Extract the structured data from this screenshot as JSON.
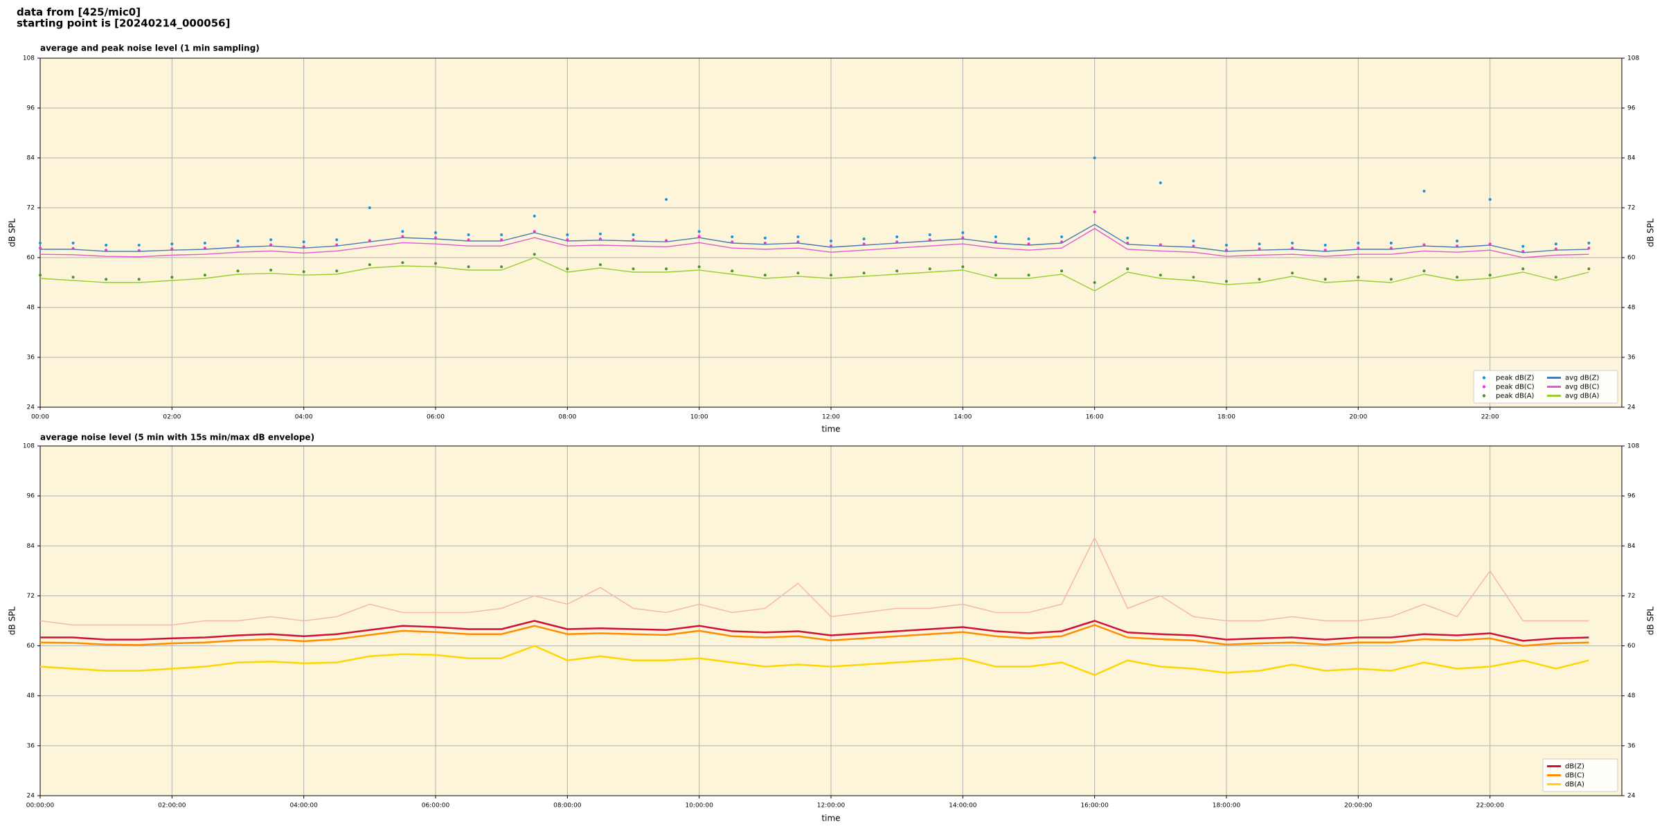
{
  "header": {
    "line1": "data from [425/mic0]",
    "line2": "starting point is [20240214_000056]"
  },
  "chart_data": [
    {
      "type": "line",
      "title": "average and peak noise level (1 min sampling)",
      "x_label": "time",
      "y_label": "dB SPL",
      "background": "#fdf5d9",
      "grid": true,
      "legend": "lower right",
      "xlim": [
        0,
        24
      ],
      "ylim": [
        24,
        108
      ],
      "xticks": [
        {
          "value": 0,
          "label": "00:00"
        },
        {
          "value": 2,
          "label": "02:00"
        },
        {
          "value": 4,
          "label": "04:00"
        },
        {
          "value": 6,
          "label": "06:00"
        },
        {
          "value": 8,
          "label": "08:00"
        },
        {
          "value": 10,
          "label": "10:00"
        },
        {
          "value": 12,
          "label": "12:00"
        },
        {
          "value": 14,
          "label": "14:00"
        },
        {
          "value": 16,
          "label": "16:00"
        },
        {
          "value": 18,
          "label": "18:00"
        },
        {
          "value": 20,
          "label": "20:00"
        },
        {
          "value": 22,
          "label": "22:00"
        }
      ],
      "yticks": [
        24,
        36,
        48,
        60,
        72,
        84,
        96,
        108
      ],
      "x": [
        0,
        0.5,
        1,
        1.5,
        2,
        2.5,
        3,
        3.5,
        4,
        4.5,
        5,
        5.5,
        6,
        6.5,
        7,
        7.5,
        8,
        8.5,
        9,
        9.5,
        10,
        10.5,
        11,
        11.5,
        12,
        12.5,
        13,
        13.5,
        14,
        14.5,
        15,
        15.5,
        16,
        16.5,
        17,
        17.5,
        18,
        18.5,
        19,
        19.5,
        20,
        20.5,
        21,
        21.5,
        22,
        22.5,
        23,
        23.5
      ],
      "series": [
        {
          "name": "peak dB(Z)",
          "kind": "scatter",
          "color": "#1f8fd6",
          "values": [
            63.5,
            63.5,
            63.0,
            63.0,
            63.3,
            63.5,
            64.0,
            64.3,
            63.8,
            64.3,
            72.0,
            66.3,
            66.0,
            65.5,
            65.5,
            70.0,
            65.5,
            65.7,
            65.5,
            74.0,
            66.3,
            65.0,
            64.7,
            65.0,
            64.0,
            64.5,
            65.0,
            65.5,
            66.0,
            65.0,
            64.5,
            65.0,
            84.0,
            64.7,
            78.0,
            64.0,
            63.0,
            63.3,
            63.5,
            63.0,
            63.5,
            63.5,
            76.0,
            64.0,
            74.0,
            62.7,
            63.3,
            63.5
          ]
        },
        {
          "name": "peak dB(C)",
          "kind": "scatter",
          "color": "#ff2fd0",
          "values": [
            62.3,
            62.2,
            61.8,
            61.7,
            62.1,
            62.3,
            62.8,
            63.1,
            62.6,
            63.1,
            64.1,
            65.1,
            64.8,
            64.3,
            64.3,
            66.3,
            64.3,
            64.5,
            64.3,
            64.1,
            65.1,
            63.8,
            63.5,
            63.8,
            62.8,
            63.3,
            63.8,
            64.3,
            64.8,
            63.8,
            63.3,
            63.8,
            71.0,
            63.5,
            63.1,
            62.8,
            61.8,
            62.1,
            62.3,
            61.8,
            62.3,
            62.3,
            63.1,
            62.8,
            63.3,
            61.5,
            62.1,
            62.3
          ]
        },
        {
          "name": "peak dB(A)",
          "kind": "scatter",
          "color": "#4f8f2f",
          "values": [
            55.8,
            55.3,
            54.8,
            54.8,
            55.3,
            55.8,
            56.8,
            57.0,
            56.6,
            56.8,
            58.3,
            58.8,
            58.6,
            57.8,
            57.8,
            60.8,
            57.3,
            58.3,
            57.3,
            57.3,
            57.8,
            56.8,
            55.8,
            56.3,
            55.8,
            56.3,
            56.8,
            57.3,
            57.8,
            55.8,
            55.8,
            56.8,
            54.0,
            57.3,
            55.8,
            55.3,
            54.3,
            54.8,
            56.3,
            54.8,
            55.3,
            54.8,
            56.8,
            55.3,
            55.8,
            57.3,
            55.3,
            57.3
          ]
        },
        {
          "name": "avg dB(Z)",
          "kind": "line",
          "color": "#4a78b0",
          "values": [
            62.0,
            62.0,
            61.5,
            61.5,
            61.8,
            62.0,
            62.5,
            62.8,
            62.3,
            62.8,
            63.8,
            64.8,
            64.5,
            64.0,
            64.0,
            66.0,
            64.0,
            64.2,
            64.0,
            63.8,
            64.8,
            63.5,
            63.2,
            63.5,
            62.5,
            63.0,
            63.5,
            64.0,
            64.5,
            63.5,
            63.0,
            63.5,
            68.0,
            63.2,
            62.8,
            62.5,
            61.5,
            61.8,
            62.0,
            61.5,
            62.0,
            62.0,
            62.8,
            62.5,
            63.0,
            61.2,
            61.8,
            62.0
          ]
        },
        {
          "name": "avg dB(C)",
          "kind": "line",
          "color": "#e05ad0",
          "values": [
            60.8,
            60.7,
            60.3,
            60.2,
            60.6,
            60.8,
            61.3,
            61.6,
            61.1,
            61.6,
            62.6,
            63.6,
            63.3,
            62.8,
            62.8,
            64.8,
            62.8,
            63.0,
            62.8,
            62.6,
            63.6,
            62.3,
            62.0,
            62.3,
            61.3,
            61.8,
            62.3,
            62.8,
            63.3,
            62.3,
            61.8,
            62.3,
            67.0,
            62.0,
            61.6,
            61.3,
            60.3,
            60.6,
            60.8,
            60.3,
            60.8,
            60.8,
            61.6,
            61.3,
            61.8,
            60.0,
            60.6,
            60.8
          ]
        },
        {
          "name": "avg dB(A)",
          "kind": "line",
          "color": "#9acd32",
          "values": [
            55.0,
            54.5,
            54.0,
            54.0,
            54.5,
            55.0,
            56.0,
            56.2,
            55.8,
            56.0,
            57.5,
            58.0,
            57.8,
            57.0,
            57.0,
            60.0,
            56.5,
            57.5,
            56.5,
            56.5,
            57.0,
            56.0,
            55.0,
            55.5,
            55.0,
            55.5,
            56.0,
            56.5,
            57.0,
            55.0,
            55.0,
            56.0,
            52.0,
            56.5,
            55.0,
            54.5,
            53.5,
            54.0,
            55.5,
            54.0,
            54.5,
            54.0,
            56.0,
            54.5,
            55.0,
            56.5,
            54.5,
            56.5
          ]
        }
      ]
    },
    {
      "type": "line",
      "title": "average noise level (5 min with 15s min/max dB envelope)",
      "x_label": "time",
      "y_label": "dB SPL",
      "background": "#fdf5d9",
      "grid": true,
      "legend": "lower right",
      "xlim": [
        0,
        24
      ],
      "ylim": [
        24,
        108
      ],
      "xticks": [
        {
          "value": 0,
          "label": "00:00:00"
        },
        {
          "value": 2,
          "label": "02:00:00"
        },
        {
          "value": 4,
          "label": "04:00:00"
        },
        {
          "value": 6,
          "label": "06:00:00"
        },
        {
          "value": 8,
          "label": "08:00:00"
        },
        {
          "value": 10,
          "label": "10:00:00"
        },
        {
          "value": 12,
          "label": "12:00:00"
        },
        {
          "value": 14,
          "label": "14:00:00"
        },
        {
          "value": 16,
          "label": "16:00:00"
        },
        {
          "value": 18,
          "label": "18:00:00"
        },
        {
          "value": 20,
          "label": "20:00:00"
        },
        {
          "value": 22,
          "label": "22:00:00"
        }
      ],
      "yticks": [
        24,
        36,
        48,
        60,
        72,
        84,
        96,
        108
      ],
      "x": [
        0,
        0.5,
        1,
        1.5,
        2,
        2.5,
        3,
        3.5,
        4,
        4.5,
        5,
        5.5,
        6,
        6.5,
        7,
        7.5,
        8,
        8.5,
        9,
        9.5,
        10,
        10.5,
        11,
        11.5,
        12,
        12.5,
        13,
        13.5,
        14,
        14.5,
        15,
        15.5,
        16,
        16.5,
        17,
        17.5,
        18,
        18.5,
        19,
        19.5,
        20,
        20.5,
        21,
        21.5,
        22,
        22.5,
        23,
        23.5
      ],
      "envelope": {
        "color": "#f3b9a6",
        "max": [
          66,
          65,
          65,
          65,
          65,
          66,
          66,
          67,
          66,
          67,
          70,
          68,
          68,
          68,
          69,
          72,
          70,
          74,
          69,
          68,
          70,
          68,
          69,
          75,
          67,
          68,
          69,
          69,
          70,
          68,
          68,
          70,
          86,
          69,
          72,
          67,
          66,
          66,
          67,
          66,
          66,
          67,
          70,
          67,
          78,
          66,
          66,
          66
        ]
      },
      "series": [
        {
          "name": "dB(Z)",
          "kind": "line",
          "color": "#d0103a",
          "values": [
            62.0,
            62.0,
            61.5,
            61.5,
            61.8,
            62.0,
            62.5,
            62.8,
            62.3,
            62.8,
            63.8,
            64.8,
            64.5,
            64.0,
            64.0,
            66.0,
            64.0,
            64.2,
            64.0,
            63.8,
            64.8,
            63.5,
            63.2,
            63.5,
            62.5,
            63.0,
            63.5,
            64.0,
            64.5,
            63.5,
            63.0,
            63.5,
            66.0,
            63.2,
            62.8,
            62.5,
            61.5,
            61.8,
            62.0,
            61.5,
            62.0,
            62.0,
            62.8,
            62.5,
            63.0,
            61.2,
            61.8,
            62.0
          ]
        },
        {
          "name": "dB(C)",
          "kind": "line",
          "color": "#ff8c00",
          "values": [
            60.8,
            60.7,
            60.3,
            60.2,
            60.6,
            60.8,
            61.3,
            61.6,
            61.1,
            61.6,
            62.6,
            63.6,
            63.3,
            62.8,
            62.8,
            64.8,
            62.8,
            63.0,
            62.8,
            62.6,
            63.6,
            62.3,
            62.0,
            62.3,
            61.3,
            61.8,
            62.3,
            62.8,
            63.3,
            62.3,
            61.8,
            62.3,
            65.0,
            62.0,
            61.6,
            61.3,
            60.3,
            60.6,
            60.8,
            60.3,
            60.8,
            60.8,
            61.6,
            61.3,
            61.8,
            60.0,
            60.6,
            60.8
          ]
        },
        {
          "name": "dB(A)",
          "kind": "line",
          "color": "#ffd700",
          "values": [
            55.0,
            54.5,
            54.0,
            54.0,
            54.5,
            55.0,
            56.0,
            56.2,
            55.8,
            56.0,
            57.5,
            58.0,
            57.8,
            57.0,
            57.0,
            60.0,
            56.5,
            57.5,
            56.5,
            56.5,
            57.0,
            56.0,
            55.0,
            55.5,
            55.0,
            55.5,
            56.0,
            56.5,
            57.0,
            55.0,
            55.0,
            56.0,
            53.0,
            56.5,
            55.0,
            54.5,
            53.5,
            54.0,
            55.5,
            54.0,
            54.5,
            54.0,
            56.0,
            54.5,
            55.0,
            56.5,
            54.5,
            56.5
          ]
        }
      ]
    }
  ]
}
